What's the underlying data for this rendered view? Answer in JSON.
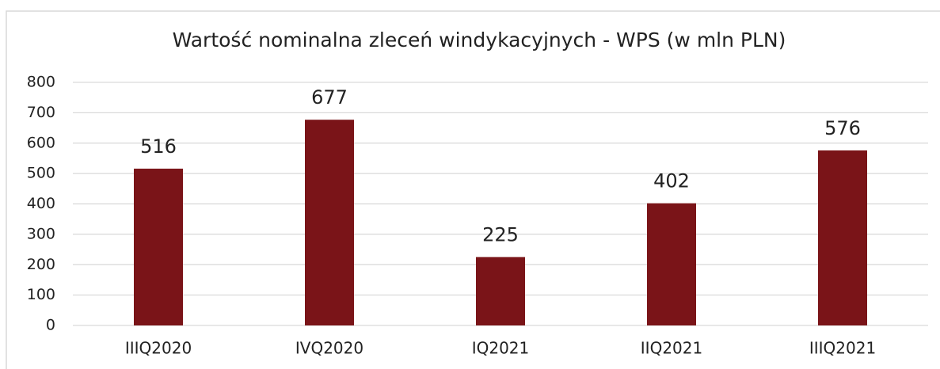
{
  "chart_data": {
    "type": "bar",
    "title": "Wartość nominalna zleceń windykacyjnych - WPS (w mln PLN)",
    "categories": [
      "IIIQ2020",
      "IVQ2020",
      "IQ2021",
      "IIQ2021",
      "IIIQ2021"
    ],
    "values": [
      516,
      677,
      225,
      402,
      576
    ],
    "color": "#7a1418",
    "ylim": [
      0,
      800
    ],
    "yticks": [
      0,
      100,
      200,
      300,
      400,
      500,
      600,
      700,
      800
    ],
    "grid": true
  }
}
